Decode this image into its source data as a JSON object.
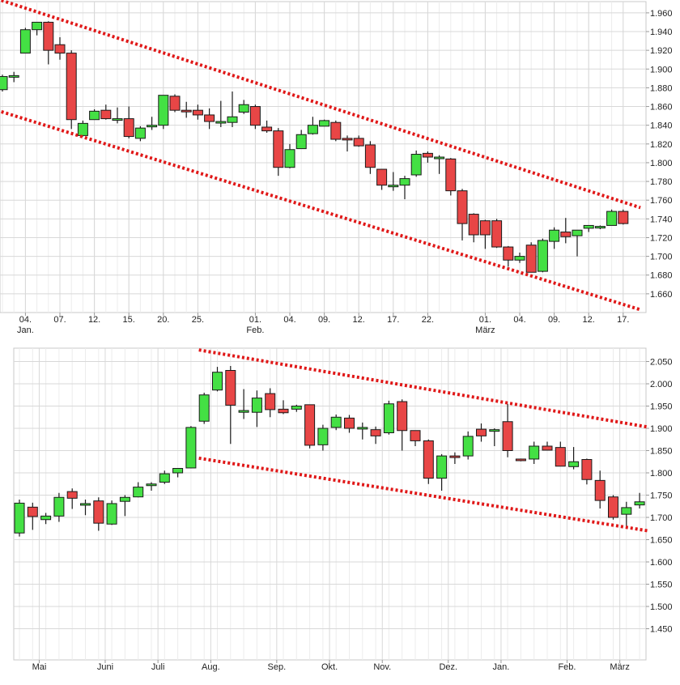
{
  "chart_data": [
    {
      "type": "candlestick",
      "title": "",
      "ylim": [
        1640,
        1972
      ],
      "y_ticks": [
        {
          "v": 1660,
          "label": "1.660"
        },
        {
          "v": 1680,
          "label": "1.680"
        },
        {
          "v": 1700,
          "label": "1.700"
        },
        {
          "v": 1720,
          "label": "1.720"
        },
        {
          "v": 1740,
          "label": "1.740"
        },
        {
          "v": 1760,
          "label": "1.760"
        },
        {
          "v": 1780,
          "label": "1.780"
        },
        {
          "v": 1800,
          "label": "1.800"
        },
        {
          "v": 1820,
          "label": "1.820"
        },
        {
          "v": 1840,
          "label": "1.840"
        },
        {
          "v": 1860,
          "label": "1.860"
        },
        {
          "v": 1880,
          "label": "1.880"
        },
        {
          "v": 1900,
          "label": "1.900"
        },
        {
          "v": 1920,
          "label": "1.920"
        },
        {
          "v": 1940,
          "label": "1.940"
        },
        {
          "v": 1960,
          "label": "1.960"
        }
      ],
      "x_ticks": [
        {
          "i": 2,
          "label": "04.",
          "sub": "Jan."
        },
        {
          "i": 5,
          "label": "07."
        },
        {
          "i": 8,
          "label": "12."
        },
        {
          "i": 11,
          "label": "15."
        },
        {
          "i": 14,
          "label": "20."
        },
        {
          "i": 17,
          "label": "25."
        },
        {
          "i": 22,
          "label": "01.",
          "sub": "Feb."
        },
        {
          "i": 25,
          "label": "04."
        },
        {
          "i": 28,
          "label": "09."
        },
        {
          "i": 31,
          "label": "12."
        },
        {
          "i": 34,
          "label": "17."
        },
        {
          "i": 37,
          "label": "22."
        },
        {
          "i": 42,
          "label": "01.",
          "sub": "März"
        },
        {
          "i": 45,
          "label": "04."
        },
        {
          "i": 48,
          "label": "09."
        },
        {
          "i": 51,
          "label": "12."
        },
        {
          "i": 54,
          "label": "17."
        }
      ],
      "candles": [
        {
          "o": 1878,
          "h": 1894,
          "l": 1876,
          "c": 1892
        },
        {
          "o": 1893,
          "h": 1897,
          "l": 1886,
          "c": 1893
        },
        {
          "o": 1917,
          "h": 1944,
          "l": 1917,
          "c": 1942
        },
        {
          "o": 1942,
          "h": 1950,
          "l": 1936,
          "c": 1950
        },
        {
          "o": 1950,
          "h": 1951,
          "l": 1905,
          "c": 1920
        },
        {
          "o": 1926,
          "h": 1934,
          "l": 1910,
          "c": 1917
        },
        {
          "o": 1917,
          "h": 1920,
          "l": 1836,
          "c": 1846
        },
        {
          "o": 1829,
          "h": 1845,
          "l": 1828,
          "c": 1842
        },
        {
          "o": 1846,
          "h": 1857,
          "l": 1846,
          "c": 1855
        },
        {
          "o": 1856,
          "h": 1862,
          "l": 1846,
          "c": 1847
        },
        {
          "o": 1847,
          "h": 1859,
          "l": 1842,
          "c": 1847
        },
        {
          "o": 1847,
          "h": 1860,
          "l": 1826,
          "c": 1828
        },
        {
          "o": 1826,
          "h": 1839,
          "l": 1823,
          "c": 1837
        },
        {
          "o": 1839,
          "h": 1849,
          "l": 1835,
          "c": 1840
        },
        {
          "o": 1840,
          "h": 1872,
          "l": 1836,
          "c": 1872
        },
        {
          "o": 1871,
          "h": 1873,
          "l": 1854,
          "c": 1856
        },
        {
          "o": 1856,
          "h": 1865,
          "l": 1848,
          "c": 1855
        },
        {
          "o": 1856,
          "h": 1862,
          "l": 1846,
          "c": 1851
        },
        {
          "o": 1851,
          "h": 1858,
          "l": 1836,
          "c": 1844
        },
        {
          "o": 1844,
          "h": 1866,
          "l": 1838,
          "c": 1844
        },
        {
          "o": 1843,
          "h": 1876,
          "l": 1838,
          "c": 1849
        },
        {
          "o": 1854,
          "h": 1867,
          "l": 1852,
          "c": 1862
        },
        {
          "o": 1860,
          "h": 1862,
          "l": 1836,
          "c": 1840
        },
        {
          "o": 1838,
          "h": 1845,
          "l": 1832,
          "c": 1834
        },
        {
          "o": 1834,
          "h": 1837,
          "l": 1786,
          "c": 1795
        },
        {
          "o": 1795,
          "h": 1820,
          "l": 1794,
          "c": 1814
        },
        {
          "o": 1815,
          "h": 1835,
          "l": 1815,
          "c": 1830
        },
        {
          "o": 1831,
          "h": 1849,
          "l": 1830,
          "c": 1840
        },
        {
          "o": 1839,
          "h": 1846,
          "l": 1839,
          "c": 1845
        },
        {
          "o": 1843,
          "h": 1845,
          "l": 1823,
          "c": 1825
        },
        {
          "o": 1826,
          "h": 1829,
          "l": 1812,
          "c": 1825
        },
        {
          "o": 1826,
          "h": 1829,
          "l": 1817,
          "c": 1818
        },
        {
          "o": 1819,
          "h": 1823,
          "l": 1788,
          "c": 1795
        },
        {
          "o": 1793,
          "h": 1793,
          "l": 1771,
          "c": 1776
        },
        {
          "o": 1776,
          "h": 1790,
          "l": 1770,
          "c": 1776
        },
        {
          "o": 1776,
          "h": 1786,
          "l": 1761,
          "c": 1783
        },
        {
          "o": 1787,
          "h": 1813,
          "l": 1785,
          "c": 1809
        },
        {
          "o": 1810,
          "h": 1812,
          "l": 1800,
          "c": 1806
        },
        {
          "o": 1806,
          "h": 1808,
          "l": 1788,
          "c": 1806
        },
        {
          "o": 1804,
          "h": 1805,
          "l": 1765,
          "c": 1770
        },
        {
          "o": 1770,
          "h": 1772,
          "l": 1717,
          "c": 1735
        },
        {
          "o": 1745,
          "h": 1746,
          "l": 1715,
          "c": 1723
        },
        {
          "o": 1738,
          "h": 1739,
          "l": 1708,
          "c": 1723
        },
        {
          "o": 1738,
          "h": 1740,
          "l": 1709,
          "c": 1710
        },
        {
          "o": 1710,
          "h": 1711,
          "l": 1689,
          "c": 1696
        },
        {
          "o": 1696,
          "h": 1704,
          "l": 1693,
          "c": 1700
        },
        {
          "o": 1712,
          "h": 1715,
          "l": 1683,
          "c": 1683
        },
        {
          "o": 1684,
          "h": 1719,
          "l": 1683,
          "c": 1717
        },
        {
          "o": 1716,
          "h": 1731,
          "l": 1708,
          "c": 1728
        },
        {
          "o": 1726,
          "h": 1741,
          "l": 1714,
          "c": 1721
        },
        {
          "o": 1722,
          "h": 1728,
          "l": 1700,
          "c": 1728
        },
        {
          "o": 1730,
          "h": 1733,
          "l": 1726,
          "c": 1733
        },
        {
          "o": 1732,
          "h": 1733,
          "l": 1729,
          "c": 1732
        },
        {
          "o": 1733,
          "h": 1750,
          "l": 1733,
          "c": 1748
        },
        {
          "o": 1748,
          "h": 1750,
          "l": 1734,
          "c": 1735
        }
      ],
      "trendlines": [
        {
          "p1": {
            "i": -0.5,
            "v": 1975
          },
          "p2": {
            "i": 55.5,
            "v": 1752
          }
        },
        {
          "p1": {
            "i": -0.5,
            "v": 1856
          },
          "p2": {
            "i": 55.5,
            "v": 1643
          }
        }
      ],
      "colors": {
        "up": "#44e044",
        "down": "#e84646",
        "trend": "#e01818",
        "grid": "#d8d8d8"
      }
    },
    {
      "type": "candlestick",
      "title": "",
      "ylim": [
        1380,
        2080
      ],
      "y_ticks": [
        {
          "v": 1450,
          "label": "1.450"
        },
        {
          "v": 1500,
          "label": "1.500"
        },
        {
          "v": 1550,
          "label": "1.550"
        },
        {
          "v": 1600,
          "label": "1.600"
        },
        {
          "v": 1650,
          "label": "1.650"
        },
        {
          "v": 1700,
          "label": "1.700"
        },
        {
          "v": 1750,
          "label": "1.750"
        },
        {
          "v": 1800,
          "label": "1.800"
        },
        {
          "v": 1850,
          "label": "1.850"
        },
        {
          "v": 1900,
          "label": "1.900"
        },
        {
          "v": 1950,
          "label": "1.950"
        },
        {
          "v": 2000,
          "label": "2.000"
        },
        {
          "v": 2050,
          "label": "2.050"
        }
      ],
      "x_ticks": [
        {
          "i": 1.5,
          "label": "Mai"
        },
        {
          "i": 6.5,
          "label": "Juni"
        },
        {
          "i": 10.5,
          "label": "Juli"
        },
        {
          "i": 14.5,
          "label": "Aug."
        },
        {
          "i": 19.5,
          "label": "Sep."
        },
        {
          "i": 23.5,
          "label": "Okt."
        },
        {
          "i": 27.5,
          "label": "Nov."
        },
        {
          "i": 32.5,
          "label": "Dez."
        },
        {
          "i": 36.5,
          "label": "Jan."
        },
        {
          "i": 41.5,
          "label": "Feb."
        },
        {
          "i": 45.5,
          "label": "März"
        }
      ],
      "candles": [
        {
          "o": 1665,
          "h": 1740,
          "l": 1657,
          "c": 1732
        },
        {
          "o": 1723,
          "h": 1733,
          "l": 1672,
          "c": 1702
        },
        {
          "o": 1695,
          "h": 1710,
          "l": 1685,
          "c": 1703
        },
        {
          "o": 1703,
          "h": 1755,
          "l": 1690,
          "c": 1745
        },
        {
          "o": 1758,
          "h": 1765,
          "l": 1719,
          "c": 1743
        },
        {
          "o": 1731,
          "h": 1740,
          "l": 1705,
          "c": 1731
        },
        {
          "o": 1737,
          "h": 1745,
          "l": 1670,
          "c": 1687
        },
        {
          "o": 1685,
          "h": 1738,
          "l": 1683,
          "c": 1731
        },
        {
          "o": 1736,
          "h": 1750,
          "l": 1703,
          "c": 1745
        },
        {
          "o": 1746,
          "h": 1779,
          "l": 1745,
          "c": 1768
        },
        {
          "o": 1775,
          "h": 1779,
          "l": 1760,
          "c": 1775
        },
        {
          "o": 1779,
          "h": 1805,
          "l": 1775,
          "c": 1798
        },
        {
          "o": 1800,
          "h": 1810,
          "l": 1790,
          "c": 1810
        },
        {
          "o": 1811,
          "h": 1905,
          "l": 1810,
          "c": 1902
        },
        {
          "o": 1916,
          "h": 1980,
          "l": 1910,
          "c": 1975
        },
        {
          "o": 1986,
          "h": 2038,
          "l": 1983,
          "c": 2026
        },
        {
          "o": 2030,
          "h": 2040,
          "l": 1865,
          "c": 1952
        },
        {
          "o": 1936,
          "h": 1988,
          "l": 1921,
          "c": 1940
        },
        {
          "o": 1936,
          "h": 1985,
          "l": 1903,
          "c": 1968
        },
        {
          "o": 1978,
          "h": 1990,
          "l": 1925,
          "c": 1942
        },
        {
          "o": 1943,
          "h": 1963,
          "l": 1932,
          "c": 1935
        },
        {
          "o": 1943,
          "h": 1953,
          "l": 1937,
          "c": 1950
        },
        {
          "o": 1953,
          "h": 1953,
          "l": 1855,
          "c": 1862
        },
        {
          "o": 1863,
          "h": 1908,
          "l": 1850,
          "c": 1900
        },
        {
          "o": 1902,
          "h": 1931,
          "l": 1896,
          "c": 1925
        },
        {
          "o": 1923,
          "h": 1930,
          "l": 1890,
          "c": 1900
        },
        {
          "o": 1902,
          "h": 1913,
          "l": 1875,
          "c": 1902
        },
        {
          "o": 1897,
          "h": 1904,
          "l": 1865,
          "c": 1883
        },
        {
          "o": 1890,
          "h": 1962,
          "l": 1886,
          "c": 1955
        },
        {
          "o": 1960,
          "h": 1965,
          "l": 1850,
          "c": 1895
        },
        {
          "o": 1895,
          "h": 1895,
          "l": 1860,
          "c": 1872
        },
        {
          "o": 1872,
          "h": 1875,
          "l": 1775,
          "c": 1788
        },
        {
          "o": 1788,
          "h": 1842,
          "l": 1760,
          "c": 1838
        },
        {
          "o": 1838,
          "h": 1846,
          "l": 1820,
          "c": 1837
        },
        {
          "o": 1838,
          "h": 1893,
          "l": 1830,
          "c": 1882
        },
        {
          "o": 1898,
          "h": 1911,
          "l": 1870,
          "c": 1883
        },
        {
          "o": 1895,
          "h": 1900,
          "l": 1860,
          "c": 1897
        },
        {
          "o": 1915,
          "h": 1955,
          "l": 1835,
          "c": 1850
        },
        {
          "o": 1831,
          "h": 1832,
          "l": 1826,
          "c": 1828
        },
        {
          "o": 1831,
          "h": 1870,
          "l": 1820,
          "c": 1860
        },
        {
          "o": 1860,
          "h": 1870,
          "l": 1850,
          "c": 1851
        },
        {
          "o": 1857,
          "h": 1870,
          "l": 1818,
          "c": 1815
        },
        {
          "o": 1814,
          "h": 1858,
          "l": 1808,
          "c": 1825
        },
        {
          "o": 1830,
          "h": 1832,
          "l": 1774,
          "c": 1785
        },
        {
          "o": 1783,
          "h": 1805,
          "l": 1720,
          "c": 1738
        },
        {
          "o": 1746,
          "h": 1750,
          "l": 1695,
          "c": 1700
        },
        {
          "o": 1707,
          "h": 1735,
          "l": 1678,
          "c": 1722
        },
        {
          "o": 1728,
          "h": 1755,
          "l": 1720,
          "c": 1735
        }
      ],
      "trendlines": [
        {
          "p1": {
            "i": 13.6,
            "v": 2076
          },
          "p2": {
            "i": 47.6,
            "v": 1903
          }
        },
        {
          "p1": {
            "i": 13.6,
            "v": 1833
          },
          "p2": {
            "i": 47.6,
            "v": 1670
          }
        }
      ],
      "colors": {
        "up": "#44e044",
        "down": "#e84646",
        "trend": "#e01818",
        "grid": "#d8d8d8"
      }
    }
  ]
}
